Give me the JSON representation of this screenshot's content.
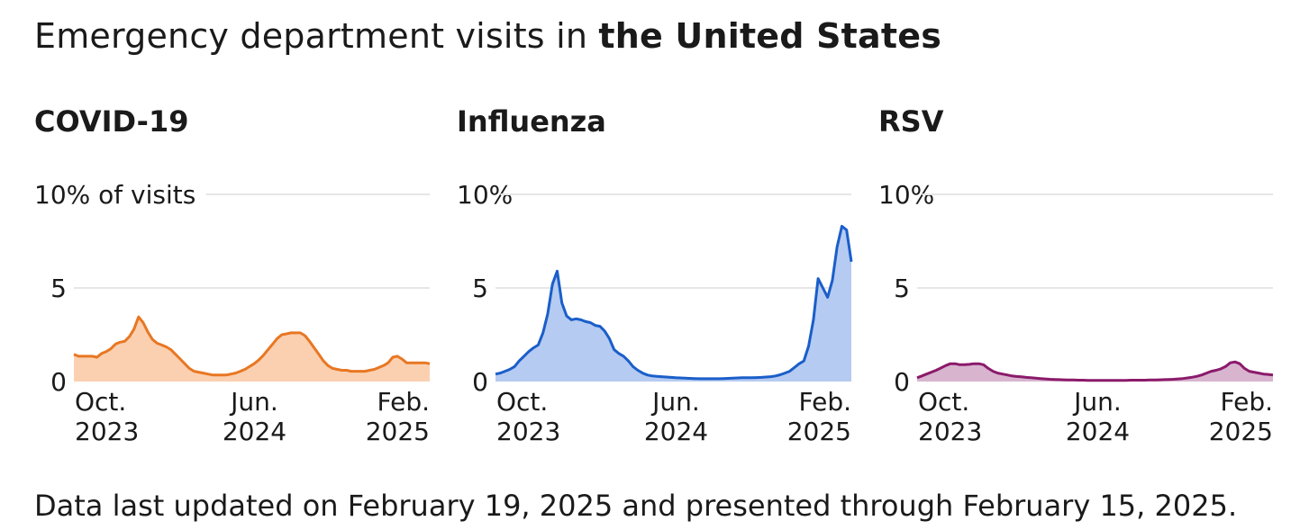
{
  "title_prefix": "Emergency department visits in ",
  "title_bold": "the United States",
  "footnote": "Data last updated on February 19, 2025 and presented through February 15, 2025.",
  "chart_data": [
    {
      "type": "area",
      "title": "COVID-19",
      "color": "#e87722",
      "fill": "#fbd0b1",
      "ylim": [
        0,
        10
      ],
      "yticks": [
        {
          "value": 0,
          "label": "0"
        },
        {
          "value": 5,
          "label": "5"
        },
        {
          "value": 10,
          "label": "10% of visits"
        }
      ],
      "xticks": [
        {
          "label1": "Oct.",
          "label2": "2023"
        },
        {
          "label1": "Jun.",
          "label2": "2024"
        },
        {
          "label1": "Feb.",
          "label2": "2025"
        }
      ],
      "grid": true,
      "unit": "% of visits",
      "values": [
        1.45,
        1.35,
        1.35,
        1.35,
        1.35,
        1.3,
        1.5,
        1.6,
        1.75,
        2.0,
        2.1,
        2.15,
        2.4,
        2.8,
        3.45,
        3.15,
        2.65,
        2.25,
        2.05,
        1.95,
        1.85,
        1.7,
        1.45,
        1.2,
        0.95,
        0.7,
        0.55,
        0.5,
        0.45,
        0.4,
        0.35,
        0.35,
        0.35,
        0.35,
        0.4,
        0.45,
        0.55,
        0.65,
        0.8,
        0.95,
        1.15,
        1.4,
        1.7,
        2.0,
        2.3,
        2.5,
        2.55,
        2.6,
        2.6,
        2.6,
        2.45,
        2.15,
        1.8,
        1.45,
        1.1,
        0.85,
        0.7,
        0.65,
        0.6,
        0.6,
        0.55,
        0.55,
        0.55,
        0.55,
        0.6,
        0.65,
        0.75,
        0.85,
        1.0,
        1.3,
        1.35,
        1.2,
        1.0,
        1.0,
        1.0,
        1.0,
        1.0,
        0.95
      ]
    },
    {
      "type": "area",
      "title": "Influenza",
      "color": "#1a5ec9",
      "fill": "#b5cbf1",
      "ylim": [
        0,
        10
      ],
      "yticks": [
        {
          "value": 0,
          "label": "0"
        },
        {
          "value": 5,
          "label": "5"
        },
        {
          "value": 10,
          "label": "10%"
        }
      ],
      "xticks": [
        {
          "label1": "Oct.",
          "label2": "2023"
        },
        {
          "label1": "Jun.",
          "label2": "2024"
        },
        {
          "label1": "Feb.",
          "label2": "2025"
        }
      ],
      "grid": true,
      "unit": "%",
      "values": [
        0.4,
        0.45,
        0.55,
        0.65,
        0.8,
        1.1,
        1.35,
        1.6,
        1.8,
        1.95,
        2.6,
        3.6,
        5.2,
        5.9,
        4.2,
        3.5,
        3.3,
        3.35,
        3.3,
        3.2,
        3.15,
        3.0,
        2.95,
        2.7,
        2.3,
        1.7,
        1.5,
        1.35,
        1.1,
        0.8,
        0.6,
        0.45,
        0.35,
        0.3,
        0.28,
        0.26,
        0.24,
        0.22,
        0.2,
        0.19,
        0.18,
        0.17,
        0.16,
        0.15,
        0.15,
        0.15,
        0.15,
        0.15,
        0.16,
        0.17,
        0.18,
        0.19,
        0.2,
        0.2,
        0.2,
        0.21,
        0.22,
        0.24,
        0.26,
        0.3,
        0.36,
        0.45,
        0.55,
        0.75,
        0.95,
        1.1,
        1.9,
        3.3,
        5.5,
        5.0,
        4.5,
        5.4,
        7.2,
        8.3,
        8.1,
        6.4
      ]
    },
    {
      "type": "area",
      "title": "RSV",
      "color": "#8b1a6b",
      "fill": "#d8b4cf",
      "ylim": [
        0,
        10
      ],
      "yticks": [
        {
          "value": 0,
          "label": "0"
        },
        {
          "value": 5,
          "label": "5"
        },
        {
          "value": 10,
          "label": "10%"
        }
      ],
      "xticks": [
        {
          "label1": "Oct.",
          "label2": "2023"
        },
        {
          "label1": "Jun.",
          "label2": "2024"
        },
        {
          "label1": "Feb.",
          "label2": "2025"
        }
      ],
      "grid": true,
      "unit": "%",
      "values": [
        0.2,
        0.3,
        0.4,
        0.5,
        0.6,
        0.72,
        0.85,
        0.95,
        0.95,
        0.9,
        0.9,
        0.92,
        0.95,
        0.95,
        0.9,
        0.7,
        0.55,
        0.45,
        0.4,
        0.35,
        0.3,
        0.27,
        0.25,
        0.22,
        0.2,
        0.18,
        0.16,
        0.14,
        0.12,
        0.11,
        0.1,
        0.09,
        0.08,
        0.08,
        0.07,
        0.07,
        0.06,
        0.06,
        0.06,
        0.06,
        0.06,
        0.06,
        0.06,
        0.06,
        0.06,
        0.07,
        0.07,
        0.07,
        0.07,
        0.08,
        0.08,
        0.09,
        0.1,
        0.11,
        0.12,
        0.14,
        0.16,
        0.19,
        0.23,
        0.28,
        0.35,
        0.45,
        0.55,
        0.6,
        0.68,
        0.8,
        1.0,
        1.05,
        0.95,
        0.7,
        0.55,
        0.5,
        0.45,
        0.4,
        0.38,
        0.35
      ]
    }
  ]
}
